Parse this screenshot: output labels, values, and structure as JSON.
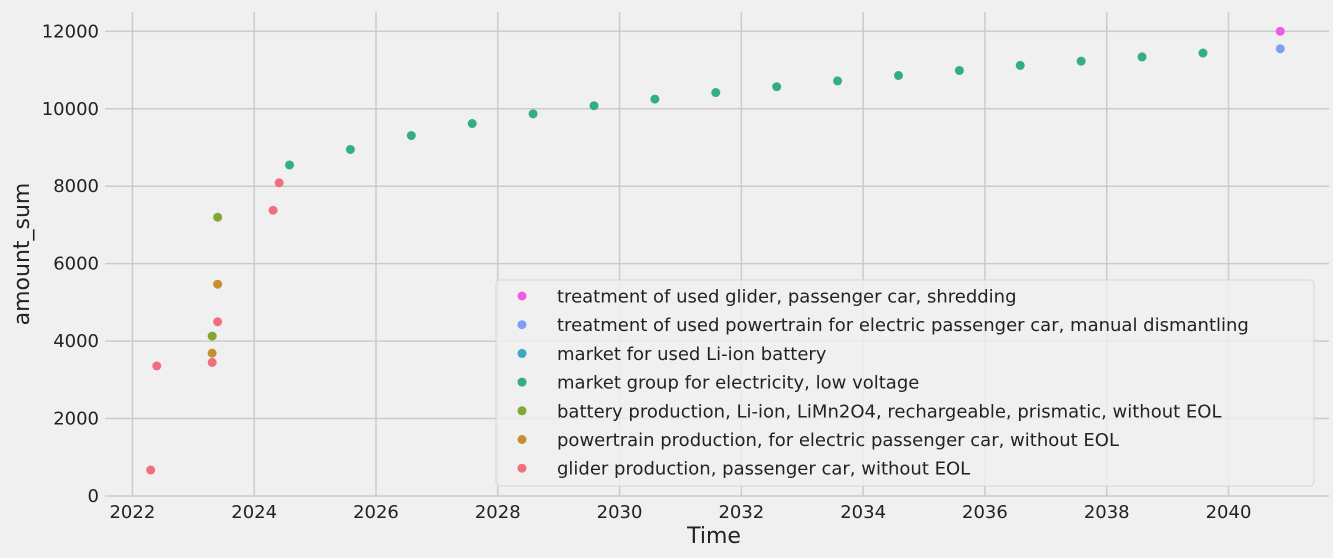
{
  "chart_data": {
    "type": "scatter",
    "title": "",
    "xlabel": "Time",
    "ylabel": "amount_sum",
    "xlim": [
      2021.55,
      2041.65
    ],
    "ylim": [
      0,
      12500
    ],
    "xticks": [
      2022,
      2024,
      2026,
      2028,
      2030,
      2032,
      2034,
      2036,
      2038,
      2040
    ],
    "yticks": [
      0,
      2000,
      4000,
      6000,
      8000,
      10000,
      12000
    ],
    "grid": true,
    "legend_position": "lower-right",
    "series": [
      {
        "name": "treatment of used glider, passenger car, shredding",
        "color": "#f15ae6",
        "points": [
          [
            2040.85,
            12000
          ]
        ]
      },
      {
        "name": "treatment of used powertrain for electric passenger car, manual dismantling",
        "color": "#7f9ef1",
        "points": [
          [
            2040.85,
            11550
          ]
        ]
      },
      {
        "name": "market for used Li-ion battery",
        "color": "#3aa6c1",
        "points": []
      },
      {
        "name": "market group for electricity, low voltage",
        "color": "#33ad85",
        "points": [
          [
            2024.58,
            8550
          ],
          [
            2025.58,
            8950
          ],
          [
            2026.58,
            9310
          ],
          [
            2027.58,
            9620
          ],
          [
            2028.58,
            9870
          ],
          [
            2029.58,
            10080
          ],
          [
            2030.58,
            10250
          ],
          [
            2031.58,
            10420
          ],
          [
            2032.58,
            10570
          ],
          [
            2033.58,
            10720
          ],
          [
            2034.58,
            10860
          ],
          [
            2035.58,
            10990
          ],
          [
            2036.58,
            11120
          ],
          [
            2037.58,
            11230
          ],
          [
            2038.58,
            11340
          ],
          [
            2039.58,
            11440
          ]
        ]
      },
      {
        "name": "battery production, Li-ion, LiMn2O4, rechargeable, prismatic, without EOL",
        "color": "#83a832",
        "points": [
          [
            2023.4,
            7200
          ],
          [
            2023.31,
            4130
          ]
        ]
      },
      {
        "name": "powertrain production, for electric passenger car, without EOL",
        "color": "#c68f31",
        "points": [
          [
            2023.4,
            5470
          ],
          [
            2023.31,
            3690
          ]
        ]
      },
      {
        "name": "glider production, passenger car, without EOL",
        "color": "#f06f7f",
        "points": [
          [
            2022.3,
            670
          ],
          [
            2022.4,
            3360
          ],
          [
            2023.31,
            3450
          ],
          [
            2023.4,
            4500
          ],
          [
            2024.31,
            7380
          ],
          [
            2024.41,
            8090
          ]
        ]
      }
    ]
  }
}
